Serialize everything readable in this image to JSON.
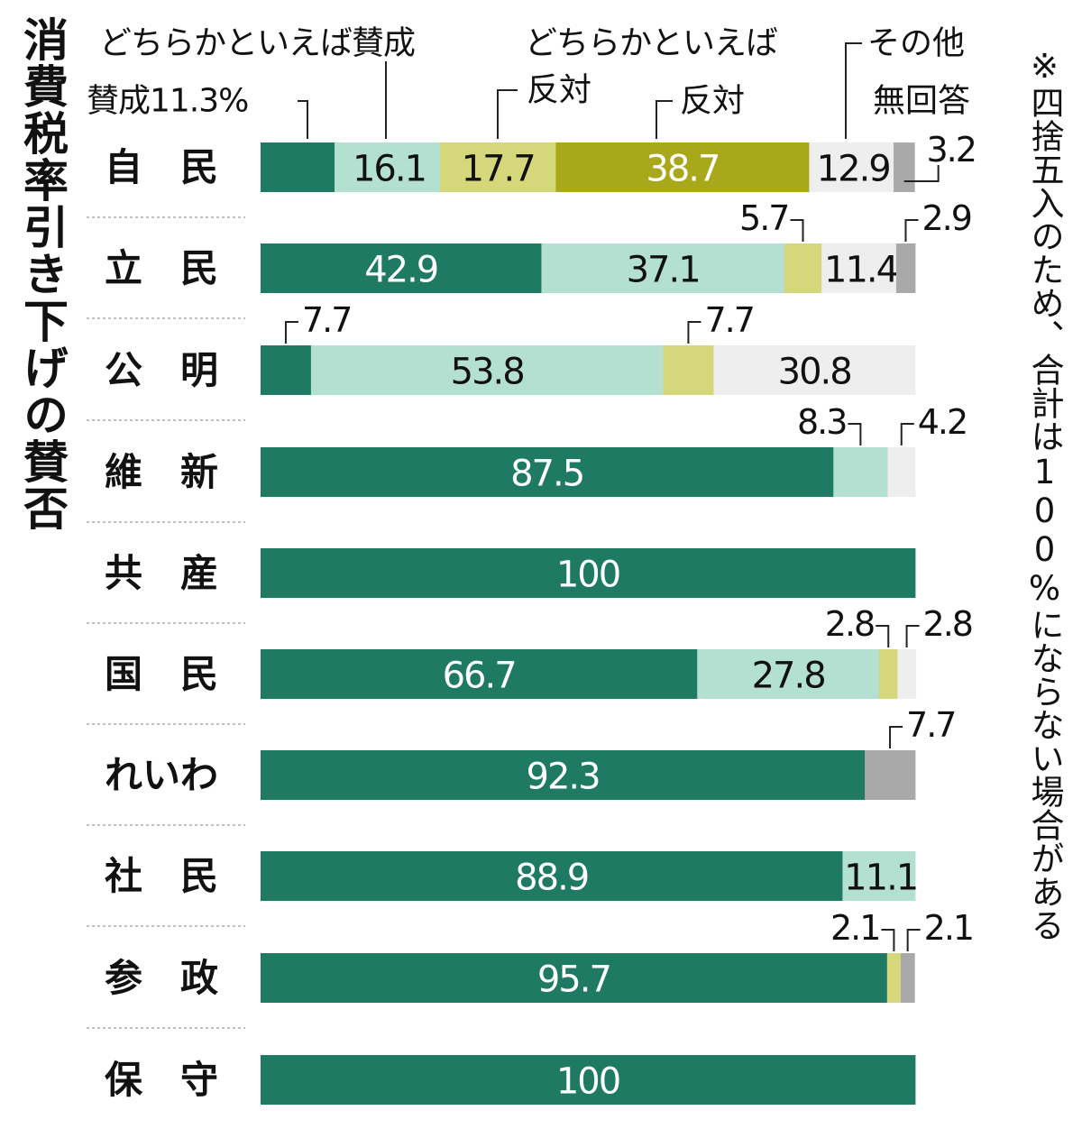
{
  "title": "消費税率引き下げの賛否",
  "note": "※四捨五入のため、合計は100%にならない場合がある",
  "chart_data": {
    "type": "bar",
    "stacked": true,
    "orientation": "horizontal",
    "title": "消費税率引き下げの賛否",
    "categories": [
      "自　民",
      "立　民",
      "公　明",
      "維　新",
      "共　産",
      "国　民",
      "れいわ",
      "社　民",
      "参　政",
      "保　守"
    ],
    "series": [
      {
        "name": "賛成",
        "color": "#1f7a63",
        "values": [
          11.3,
          42.9,
          7.7,
          87.5,
          100,
          66.7,
          92.3,
          88.9,
          95.7,
          100
        ]
      },
      {
        "name": "どちらかといえば賛成",
        "color": "#b3e0d0",
        "values": [
          16.1,
          37.1,
          53.8,
          8.3,
          0,
          27.8,
          0,
          11.1,
          0,
          0
        ]
      },
      {
        "name": "どちらかといえば反対",
        "color": "#d4d77a",
        "values": [
          17.7,
          5.7,
          7.7,
          0,
          0,
          2.8,
          0,
          0,
          2.1,
          0
        ]
      },
      {
        "name": "反対",
        "color": "#a9a81a",
        "values": [
          38.7,
          0,
          0,
          0,
          0,
          0,
          0,
          0,
          0,
          0
        ]
      },
      {
        "name": "その他",
        "color": "#eeeeee",
        "values": [
          12.9,
          11.4,
          30.8,
          4.2,
          0,
          2.8,
          0,
          0,
          0,
          0
        ]
      },
      {
        "name": "無回答",
        "color": "#a9a9a9",
        "values": [
          3.2,
          2.9,
          0,
          0,
          0,
          0,
          7.7,
          0,
          2.1,
          0
        ]
      }
    ],
    "bar_labels": [
      [
        "",
        "16.1",
        "17.7",
        "38.7",
        "12.9",
        ""
      ],
      [
        "42.9",
        "37.1",
        "",
        "",
        "11.4",
        ""
      ],
      [
        "",
        "53.8",
        "",
        "",
        "30.8",
        ""
      ],
      [
        "87.5",
        "",
        "",
        "",
        "",
        ""
      ],
      [
        "100",
        "",
        "",
        "",
        "",
        ""
      ],
      [
        "66.7",
        "27.8",
        "",
        "",
        "",
        ""
      ],
      [
        "92.3",
        "",
        "",
        "",
        "",
        ""
      ],
      [
        "88.9",
        "11.1",
        "",
        "",
        "",
        ""
      ],
      [
        "95.7",
        "",
        "",
        "",
        "",
        ""
      ],
      [
        "100",
        "",
        "",
        "",
        "",
        ""
      ]
    ],
    "legend_labels": [
      {
        "text": "賛成11.3%"
      },
      {
        "text": "どちらかといえば賛成"
      },
      {
        "text": "どちらかといえば"
      },
      {
        "text": "反対"
      },
      {
        "text": "反対"
      },
      {
        "text": "その他"
      },
      {
        "text": "無回答"
      }
    ],
    "callouts": [
      {
        "row": 0,
        "seg": 5,
        "text": "3.2"
      },
      {
        "row": 1,
        "seg": 2,
        "text": "5.7"
      },
      {
        "row": 1,
        "seg": 5,
        "text": "2.9"
      },
      {
        "row": 2,
        "seg": 0,
        "text": "7.7"
      },
      {
        "row": 2,
        "seg": 2,
        "text": "7.7"
      },
      {
        "row": 3,
        "seg": 1,
        "text": "8.3"
      },
      {
        "row": 3,
        "seg": 4,
        "text": "4.2"
      },
      {
        "row": 5,
        "seg": 2,
        "text": "2.8"
      },
      {
        "row": 5,
        "seg": 4,
        "text": "2.8"
      },
      {
        "row": 6,
        "seg": 5,
        "text": "7.7"
      },
      {
        "row": 8,
        "seg": 2,
        "text": "2.1"
      },
      {
        "row": 8,
        "seg": 5,
        "text": "2.1"
      }
    ],
    "xlim": [
      0,
      100
    ]
  }
}
